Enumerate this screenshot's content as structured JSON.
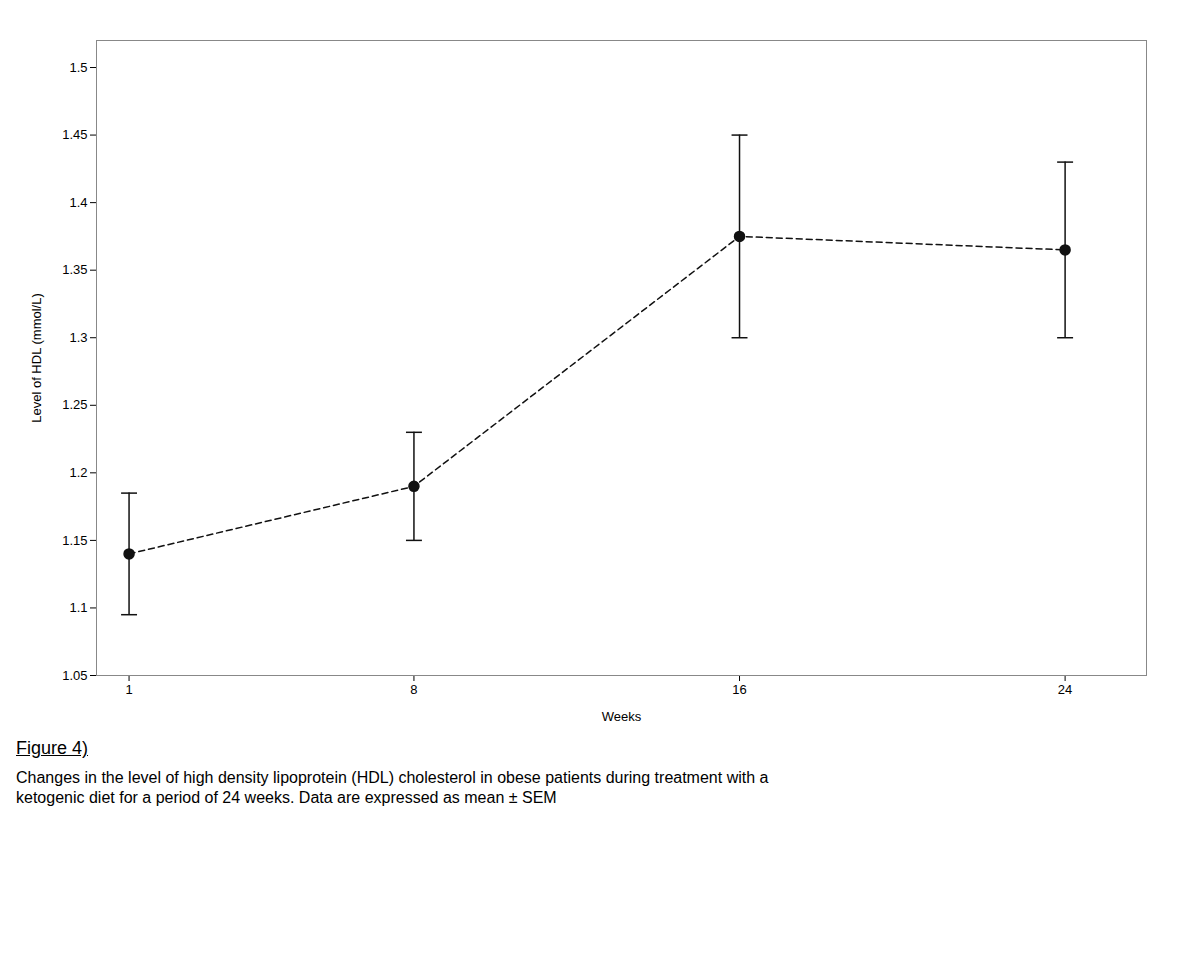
{
  "chart_data": {
    "type": "line",
    "x": [
      1,
      8,
      16,
      24
    ],
    "values": [
      1.14,
      1.19,
      1.375,
      1.365
    ],
    "yerr": [
      0.045,
      0.04,
      0.075,
      0.065
    ],
    "xlabel": "Weeks",
    "ylabel": "Level of HDL (mmol/L)",
    "xlim": [
      0.2,
      26
    ],
    "ylim": [
      1.05,
      1.52
    ],
    "xticks": [
      1,
      8,
      16,
      24
    ],
    "yticks": [
      1.05,
      1.1,
      1.15,
      1.2,
      1.25,
      1.3,
      1.35,
      1.4,
      1.45,
      1.5
    ],
    "color": "#111111",
    "marker": "circle",
    "line_style": "dashed",
    "grid": false,
    "annotations": [
      "Figure 4)",
      "Changes in the level of high density lipoprotein (HDL) cholesterol in obese patients during treatment with a",
      "ketogenic diet for a period of 24 weeks. Data are expressed as mean ± SEM"
    ]
  }
}
